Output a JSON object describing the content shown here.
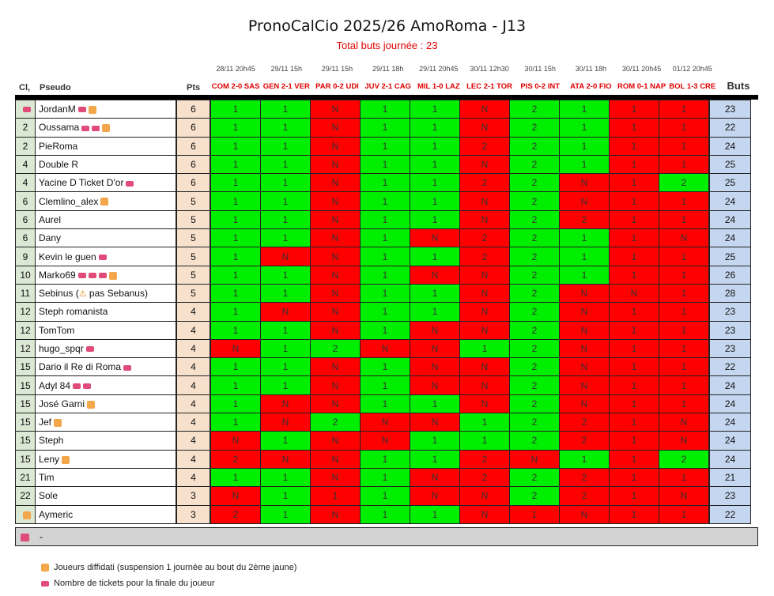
{
  "title": "PronoCalCio 2025/26 AmoRoma - J13",
  "subtitle": "Total buts journée : 23",
  "headers": {
    "rank": "Cl,",
    "pseudo": "Pseudo",
    "pts": "Pts",
    "buts": "Buts"
  },
  "matches": [
    {
      "date": "28/11 20h45",
      "label": "COM 2-0 SAS"
    },
    {
      "date": "29/11 15h",
      "label": "GEN 2-1 VER"
    },
    {
      "date": "29/11 15h",
      "label": "PAR 0-2 UDI"
    },
    {
      "date": "29/11 18h",
      "label": "JUV 2-1 CAG"
    },
    {
      "date": "29/11 20h45",
      "label": "MIL 1-0 LAZ"
    },
    {
      "date": "30/11 12h30",
      "label": "LEC 2-1 TOR"
    },
    {
      "date": "30/11 15h",
      "label": "PIS 0-2 INT"
    },
    {
      "date": "30/11 18h",
      "label": "ATA 2-0 FIO"
    },
    {
      "date": "30/11 20h45",
      "label": "ROM 0-1 NAP"
    },
    {
      "date": "01/12 20h45",
      "label": "BOL 1-3 CRE"
    }
  ],
  "colors": {
    "correct": "#00ee00",
    "wrong": "#ff0000",
    "ticket": "#e04b7a",
    "diffidati": "#f4a64a",
    "rank_bg": "#dbe8d3",
    "pts_bg": "#f7e0cc",
    "buts_bg": "#c5d7f0"
  },
  "rows": [
    {
      "rank": "",
      "rank_ticket": true,
      "name": "JordanM",
      "tickets": 1,
      "diffidati": true,
      "pts": "6",
      "picks": [
        "1",
        "1",
        "N",
        "1",
        "1",
        "N",
        "2",
        "1",
        "1",
        "1"
      ],
      "ok": [
        1,
        1,
        0,
        1,
        1,
        0,
        1,
        1,
        0,
        0
      ],
      "buts": "23"
    },
    {
      "rank": "2",
      "name": "Oussama",
      "tickets": 2,
      "diffidati": true,
      "pts": "6",
      "picks": [
        "1",
        "1",
        "N",
        "1",
        "1",
        "N",
        "2",
        "1",
        "1",
        "1"
      ],
      "ok": [
        1,
        1,
        0,
        1,
        1,
        0,
        1,
        1,
        0,
        0
      ],
      "buts": "22"
    },
    {
      "rank": "2",
      "name": "PieRoma",
      "tickets": 0,
      "diffidati": false,
      "pts": "6",
      "picks": [
        "1",
        "1",
        "N",
        "1",
        "1",
        "2",
        "2",
        "1",
        "1",
        "1"
      ],
      "ok": [
        1,
        1,
        0,
        1,
        1,
        0,
        1,
        1,
        0,
        0
      ],
      "buts": "24"
    },
    {
      "rank": "4",
      "name": "Double R",
      "tickets": 0,
      "diffidati": false,
      "pts": "6",
      "picks": [
        "1",
        "1",
        "N",
        "1",
        "1",
        "N",
        "2",
        "1",
        "1",
        "1"
      ],
      "ok": [
        1,
        1,
        0,
        1,
        1,
        0,
        1,
        1,
        0,
        0
      ],
      "buts": "25"
    },
    {
      "rank": "4",
      "name": "Yacine D Ticket D'or",
      "tickets": 1,
      "diffidati": false,
      "pts": "6",
      "picks": [
        "1",
        "1",
        "N",
        "1",
        "1",
        "2",
        "2",
        "N",
        "1",
        "2"
      ],
      "ok": [
        1,
        1,
        0,
        1,
        1,
        0,
        1,
        0,
        0,
        1
      ],
      "buts": "25"
    },
    {
      "rank": "6",
      "name": "Clemlino_alex",
      "tickets": 0,
      "diffidati": true,
      "pts": "5",
      "picks": [
        "1",
        "1",
        "N",
        "1",
        "1",
        "N",
        "2",
        "N",
        "1",
        "1"
      ],
      "ok": [
        1,
        1,
        0,
        1,
        1,
        0,
        1,
        0,
        0,
        0
      ],
      "buts": "24"
    },
    {
      "rank": "6",
      "name": "Aurel",
      "tickets": 0,
      "diffidati": false,
      "pts": "5",
      "picks": [
        "1",
        "1",
        "N",
        "1",
        "1",
        "N",
        "2",
        "2",
        "1",
        "1"
      ],
      "ok": [
        1,
        1,
        0,
        1,
        1,
        0,
        1,
        0,
        0,
        0
      ],
      "buts": "24"
    },
    {
      "rank": "6",
      "name": "Dany",
      "tickets": 0,
      "diffidati": false,
      "pts": "5",
      "picks": [
        "1",
        "1",
        "N",
        "1",
        "N",
        "2",
        "2",
        "1",
        "1",
        "N"
      ],
      "ok": [
        1,
        1,
        0,
        1,
        0,
        0,
        1,
        1,
        0,
        0
      ],
      "buts": "24"
    },
    {
      "rank": "9",
      "name": "Kevin le guen",
      "tickets": 1,
      "diffidati": false,
      "pts": "5",
      "picks": [
        "1",
        "N",
        "N",
        "1",
        "1",
        "2",
        "2",
        "1",
        "1",
        "1"
      ],
      "ok": [
        1,
        0,
        0,
        1,
        1,
        0,
        1,
        1,
        0,
        0
      ],
      "buts": "25"
    },
    {
      "rank": "10",
      "name": "Marko69",
      "tickets": 3,
      "diffidati": true,
      "pts": "5",
      "picks": [
        "1",
        "1",
        "N",
        "1",
        "N",
        "N",
        "2",
        "1",
        "1",
        "1"
      ],
      "ok": [
        1,
        1,
        0,
        1,
        0,
        0,
        1,
        1,
        0,
        0
      ],
      "buts": "26"
    },
    {
      "rank": "11",
      "name": "Sebinus (",
      "warn": "⚠",
      "name_after": " pas Sebanus)",
      "tickets": 0,
      "diffidati": false,
      "pts": "5",
      "picks": [
        "1",
        "1",
        "N",
        "1",
        "1",
        "N",
        "2",
        "N",
        "N",
        "1"
      ],
      "ok": [
        1,
        1,
        0,
        1,
        1,
        0,
        1,
        0,
        0,
        0
      ],
      "buts": "28"
    },
    {
      "rank": "12",
      "name": "Steph romanista",
      "tickets": 0,
      "diffidati": false,
      "pts": "4",
      "picks": [
        "1",
        "N",
        "N",
        "1",
        "1",
        "N",
        "2",
        "N",
        "1",
        "1"
      ],
      "ok": [
        1,
        0,
        0,
        1,
        1,
        0,
        1,
        0,
        0,
        0
      ],
      "buts": "23"
    },
    {
      "rank": "12",
      "name": "TomTom",
      "tickets": 0,
      "diffidati": false,
      "pts": "4",
      "picks": [
        "1",
        "1",
        "N",
        "1",
        "N",
        "N",
        "2",
        "N",
        "1",
        "1"
      ],
      "ok": [
        1,
        1,
        0,
        1,
        0,
        0,
        1,
        0,
        0,
        0
      ],
      "buts": "23"
    },
    {
      "rank": "12",
      "name": "hugo_spqr",
      "tickets": 1,
      "diffidati": false,
      "pts": "4",
      "picks": [
        "N",
        "1",
        "2",
        "N",
        "N",
        "1",
        "2",
        "N",
        "1",
        "1"
      ],
      "ok": [
        0,
        1,
        1,
        0,
        0,
        1,
        1,
        0,
        0,
        0
      ],
      "buts": "23"
    },
    {
      "rank": "15",
      "name": "Dario il Re di Roma",
      "tickets": 1,
      "diffidati": false,
      "pts": "4",
      "picks": [
        "1",
        "1",
        "N",
        "1",
        "N",
        "N",
        "2",
        "N",
        "1",
        "1"
      ],
      "ok": [
        1,
        1,
        0,
        1,
        0,
        0,
        1,
        0,
        0,
        0
      ],
      "buts": "22"
    },
    {
      "rank": "15",
      "name": "Adyl 84",
      "tickets": 2,
      "diffidati": false,
      "pts": "4",
      "picks": [
        "1",
        "1",
        "N",
        "1",
        "N",
        "N",
        "2",
        "N",
        "1",
        "1"
      ],
      "ok": [
        1,
        1,
        0,
        1,
        0,
        0,
        1,
        0,
        0,
        0
      ],
      "buts": "24"
    },
    {
      "rank": "15",
      "name": "José Garni",
      "tickets": 0,
      "diffidati": true,
      "pts": "4",
      "picks": [
        "1",
        "N",
        "N",
        "1",
        "1",
        "N",
        "2",
        "N",
        "1",
        "1"
      ],
      "ok": [
        1,
        0,
        0,
        1,
        1,
        0,
        1,
        0,
        0,
        0
      ],
      "buts": "24"
    },
    {
      "rank": "15",
      "name": "Jef",
      "tickets": 0,
      "diffidati": true,
      "pts": "4",
      "picks": [
        "1",
        "N",
        "2",
        "N",
        "N",
        "1",
        "2",
        "2",
        "1",
        "N"
      ],
      "ok": [
        1,
        0,
        1,
        0,
        0,
        1,
        1,
        0,
        0,
        0
      ],
      "buts": "24"
    },
    {
      "rank": "15",
      "name": "Steph",
      "tickets": 0,
      "diffidati": false,
      "pts": "4",
      "picks": [
        "N",
        "1",
        "N",
        "N",
        "1",
        "1",
        "2",
        "2",
        "1",
        "N"
      ],
      "ok": [
        0,
        1,
        0,
        0,
        1,
        1,
        1,
        0,
        0,
        0
      ],
      "buts": "24"
    },
    {
      "rank": "15",
      "name": "Leny",
      "tickets": 0,
      "diffidati": true,
      "pts": "4",
      "picks": [
        "2",
        "N",
        "N",
        "1",
        "1",
        "2",
        "N",
        "1",
        "1",
        "2"
      ],
      "ok": [
        0,
        0,
        0,
        1,
        1,
        0,
        0,
        1,
        0,
        1
      ],
      "buts": "24"
    },
    {
      "rank": "21",
      "name": "Tim",
      "tickets": 0,
      "diffidati": false,
      "pts": "4",
      "picks": [
        "1",
        "1",
        "N",
        "1",
        "N",
        "2",
        "2",
        "2",
        "1",
        "1"
      ],
      "ok": [
        1,
        1,
        0,
        1,
        0,
        0,
        1,
        0,
        0,
        0
      ],
      "buts": "21"
    },
    {
      "rank": "22",
      "name": "Sole",
      "tickets": 0,
      "diffidati": false,
      "pts": "3",
      "picks": [
        "N",
        "1",
        "1",
        "1",
        "N",
        "N",
        "2",
        "2",
        "1",
        "N"
      ],
      "ok": [
        0,
        1,
        0,
        1,
        0,
        0,
        1,
        0,
        0,
        0
      ],
      "buts": "23"
    },
    {
      "rank": "",
      "rank_diffidati": true,
      "name": "Aymeric",
      "tickets": 0,
      "diffidati": false,
      "pts": "3",
      "picks": [
        "2",
        "1",
        "N",
        "1",
        "1",
        "N",
        "1",
        "N",
        "1",
        "1"
      ],
      "ok": [
        0,
        1,
        0,
        1,
        1,
        0,
        0,
        0,
        0,
        0
      ],
      "buts": "22"
    }
  ],
  "footer_row": {
    "text": "-"
  },
  "legend": {
    "diffidati": "Joueurs diffidati (suspension 1 journée au bout du 2ème jaune)",
    "tickets": "Nombre de tickets pour la finale du joueur"
  }
}
